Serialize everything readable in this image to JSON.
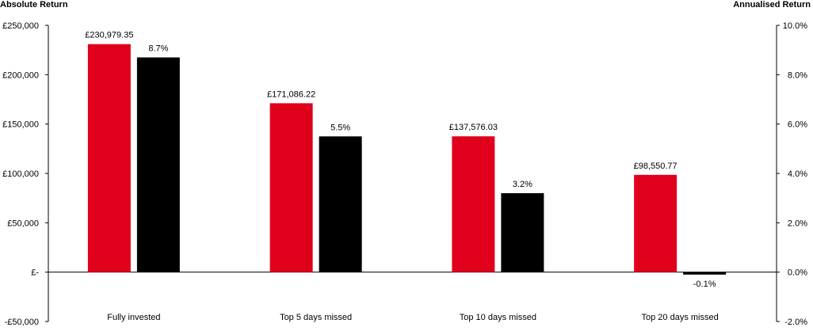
{
  "chart_data": {
    "type": "bar",
    "title": "",
    "ylabel": "Absolute Return",
    "y2label": "Annualised Return",
    "categories": [
      "Fully invested",
      "Top 5 days missed",
      "Top 10 days missed",
      "Top 20 days missed"
    ],
    "series": [
      {
        "axis": "left",
        "color": "#e0001b",
        "values": [
          230979.35,
          171086.22,
          137576.03,
          98550.77
        ],
        "labels": [
          "£230,979.35",
          "£171,086.22",
          "£137,576.03",
          "£98,550.77"
        ]
      },
      {
        "axis": "right",
        "color": "#000000",
        "values": [
          8.7,
          5.5,
          3.2,
          -0.1
        ],
        "labels": [
          "8.7%",
          "5.5%",
          "3.2%",
          "-0.1%"
        ]
      }
    ],
    "ylim": [
      -50000,
      250000
    ],
    "y2lim": [
      -2.0,
      10.0
    ],
    "yticks": [
      "£250,000",
      "£200,000",
      "£150,000",
      "£100,000",
      "£50,000",
      "£-",
      "-£50,000"
    ],
    "y2ticks": [
      "10.0%",
      "8.0%",
      "6.0%",
      "4.0%",
      "2.0%",
      "0.0%",
      "-2.0%"
    ],
    "grid": false,
    "legend": "none"
  }
}
